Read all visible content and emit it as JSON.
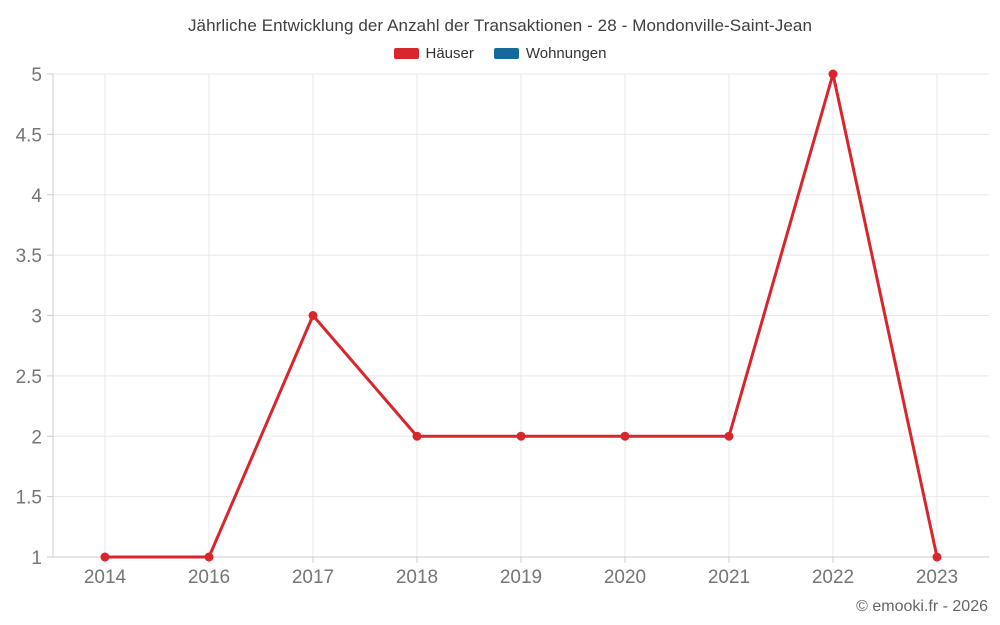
{
  "title": "Jährliche Entwicklung der Anzahl der Transaktionen - 28 - Mondonville-Saint-Jean",
  "legend": {
    "items": [
      {
        "label": "Häuser",
        "color": "#d8262c"
      },
      {
        "label": "Wohnungen",
        "color": "#15699b"
      }
    ]
  },
  "footer": {
    "credit": "© emooki.fr - 2026"
  },
  "colors": {
    "background": "#ffffff",
    "grid": "#e8e8e8",
    "axis": "#cccccc",
    "axis_label": "#757575",
    "title_text": "#404040",
    "legend_text": "#333333",
    "footer_text": "#666666"
  },
  "chart_data": {
    "type": "line",
    "title": "Jährliche Entwicklung der Anzahl der Transaktionen - 28 - Mondonville-Saint-Jean",
    "categories": [
      "2014",
      "2016",
      "2017",
      "2018",
      "2019",
      "2020",
      "2021",
      "2022",
      "2023"
    ],
    "series": [
      {
        "name": "Häuser",
        "color": "#d8262c",
        "values": [
          1,
          1,
          3,
          2,
          2,
          2,
          2,
          5,
          1
        ]
      },
      {
        "name": "Wohnungen",
        "color": "#15699b",
        "values": []
      }
    ],
    "xlabel": "",
    "ylabel": "",
    "ylim": [
      1,
      5
    ],
    "ytick_step": 0.5,
    "grid": true,
    "legend_position": "top",
    "marker": "circle"
  }
}
